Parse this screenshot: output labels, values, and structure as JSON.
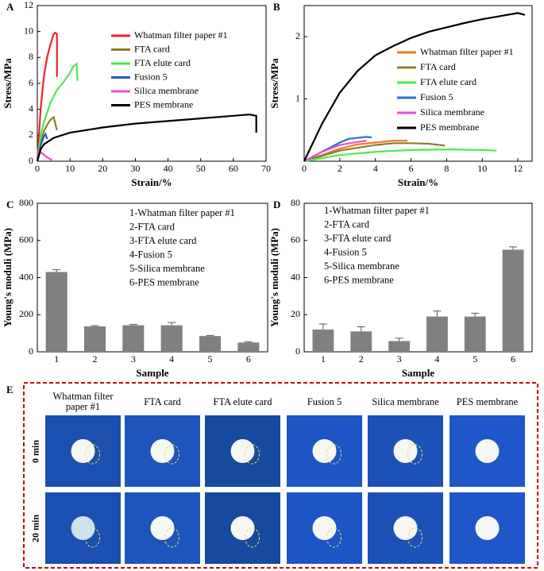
{
  "chart_data": [
    {
      "type": "line",
      "panel": "A",
      "xlabel": "Strain/%",
      "ylabel": "Stress/MPa",
      "xlim": [
        0,
        70
      ],
      "xticks": [
        0,
        10,
        20,
        30,
        40,
        50,
        60,
        70
      ],
      "ylim": [
        0,
        12
      ],
      "yticks": [
        0,
        2,
        4,
        6,
        8,
        10,
        12
      ],
      "series": [
        {
          "name": "Whatman filter paper #1",
          "color": "#e8262a",
          "x": [
            0,
            1,
            2,
            3,
            4,
            5,
            5.5,
            6,
            6
          ],
          "values": [
            0,
            4,
            6.5,
            8,
            9,
            9.8,
            9.9,
            9.8,
            6.5
          ]
        },
        {
          "name": "FTA card",
          "color": "#8b7d2a",
          "x": [
            0,
            1,
            2,
            3,
            4,
            5,
            6
          ],
          "values": [
            0,
            1.5,
            2.3,
            2.8,
            3.2,
            3.4,
            2.4
          ]
        },
        {
          "name": "FTA elute card",
          "color": "#4ee84e",
          "x": [
            0,
            1,
            2,
            4,
            6,
            8,
            10,
            11,
            12,
            12.3
          ],
          "values": [
            0,
            2,
            3,
            4.5,
            5.5,
            6.1,
            6.8,
            7.3,
            7.5,
            6.2
          ]
        },
        {
          "name": "Fusion 5",
          "color": "#1f5fbf",
          "x": [
            0,
            1,
            2,
            2.5,
            3
          ],
          "values": [
            0,
            1.2,
            1.9,
            2.1,
            1.7
          ]
        },
        {
          "name": "Silica membrane",
          "color": "#e84fd0",
          "x": [
            0,
            1,
            2,
            3,
            4,
            4.5
          ],
          "values": [
            0.8,
            0.7,
            0.5,
            0.3,
            0.15,
            0.1
          ]
        },
        {
          "name": "PES membrane",
          "color": "#000000",
          "x": [
            0,
            1,
            2,
            5,
            10,
            20,
            30,
            40,
            50,
            60,
            65,
            67,
            67
          ],
          "values": [
            0,
            0.9,
            1.3,
            1.8,
            2.2,
            2.6,
            2.9,
            3.1,
            3.3,
            3.5,
            3.6,
            3.5,
            2.2
          ]
        }
      ]
    },
    {
      "type": "line",
      "panel": "B",
      "xlabel": "Strain/%",
      "ylabel": "Stress/MPa",
      "xlim": [
        0,
        12.8
      ],
      "xticks": [
        0,
        2,
        4,
        6,
        8,
        10,
        12
      ],
      "ylim": [
        0,
        2.5
      ],
      "yticks": [
        1,
        2
      ],
      "series": [
        {
          "name": "Whatman filter paper #1",
          "color": "#f07a2a",
          "x": [
            0,
            1,
            2,
            3,
            4,
            5,
            5.8
          ],
          "values": [
            0,
            0.1,
            0.2,
            0.27,
            0.3,
            0.33,
            0.33
          ]
        },
        {
          "name": "FTA card",
          "color": "#8b7d2a",
          "x": [
            0,
            2,
            4,
            5,
            6,
            7,
            7.9
          ],
          "values": [
            0,
            0.17,
            0.26,
            0.29,
            0.29,
            0.28,
            0.25
          ]
        },
        {
          "name": "FTA elute card",
          "color": "#4ee84e",
          "x": [
            0,
            2,
            4,
            6,
            8,
            10,
            10.8
          ],
          "values": [
            0,
            0.1,
            0.15,
            0.18,
            0.19,
            0.18,
            0.17
          ]
        },
        {
          "name": "Fusion 5",
          "color": "#2f6fcf",
          "x": [
            0,
            1,
            2,
            2.5,
            3.5,
            3.8
          ],
          "values": [
            0,
            0.15,
            0.3,
            0.36,
            0.39,
            0.38
          ]
        },
        {
          "name": "Silica membrane",
          "color": "#e84fd0",
          "x": [
            0,
            1,
            2,
            3,
            3.5
          ],
          "values": [
            0,
            0.15,
            0.26,
            0.31,
            0.33
          ]
        },
        {
          "name": "PES membrane",
          "color": "#000000",
          "x": [
            0,
            1,
            2,
            3,
            4,
            5,
            6,
            7,
            8,
            9,
            10,
            11,
            12,
            12.4
          ],
          "values": [
            0,
            0.6,
            1.1,
            1.45,
            1.7,
            1.85,
            1.98,
            2.08,
            2.15,
            2.22,
            2.28,
            2.33,
            2.38,
            2.35
          ]
        }
      ]
    },
    {
      "type": "bar",
      "panel": "C",
      "xlabel": "Sample",
      "ylabel": "Young's moduli (MPa)",
      "categories": [
        "1",
        "2",
        "3",
        "4",
        "5",
        "6"
      ],
      "values": [
        430,
        137,
        143,
        143,
        85,
        50
      ],
      "errors": [
        12,
        4,
        4,
        15,
        3,
        4
      ],
      "color": "#808080",
      "ylim": [
        0,
        800
      ],
      "yticks": [
        0,
        200,
        400,
        600,
        800
      ],
      "notes": [
        "1-Whatman filter paper #1",
        "2-FTA card",
        "3-FTA elute card",
        "4-Fusion 5",
        "5-Silica membrane",
        "6-PES membrane"
      ]
    },
    {
      "type": "bar",
      "panel": "D",
      "xlabel": "Sample",
      "ylabel": "Young's moduli (MPa)",
      "categories": [
        "1",
        "2",
        "3",
        "4",
        "5",
        "6"
      ],
      "values": [
        12,
        11,
        5.8,
        19,
        19,
        55
      ],
      "errors": [
        3,
        2.5,
        1.5,
        3,
        1.8,
        1.5
      ],
      "color": "#808080",
      "ylim": [
        0,
        80
      ],
      "yticks": [
        0,
        20,
        40,
        60,
        80
      ],
      "notes": [
        "1-Whatman filter paper #1",
        "2-FTA card",
        "3-FTA elute card",
        "4-Fusion 5",
        "5-Silica membrane",
        "6-PES membrane"
      ]
    }
  ],
  "panel_e": {
    "panel": "E",
    "columns": [
      "Whatman filter paper #1",
      "FTA card",
      "FTA elute card",
      "Fusion 5",
      "Silica membrane",
      "PES membrane"
    ],
    "rows": [
      "0 min",
      "20 min"
    ]
  }
}
